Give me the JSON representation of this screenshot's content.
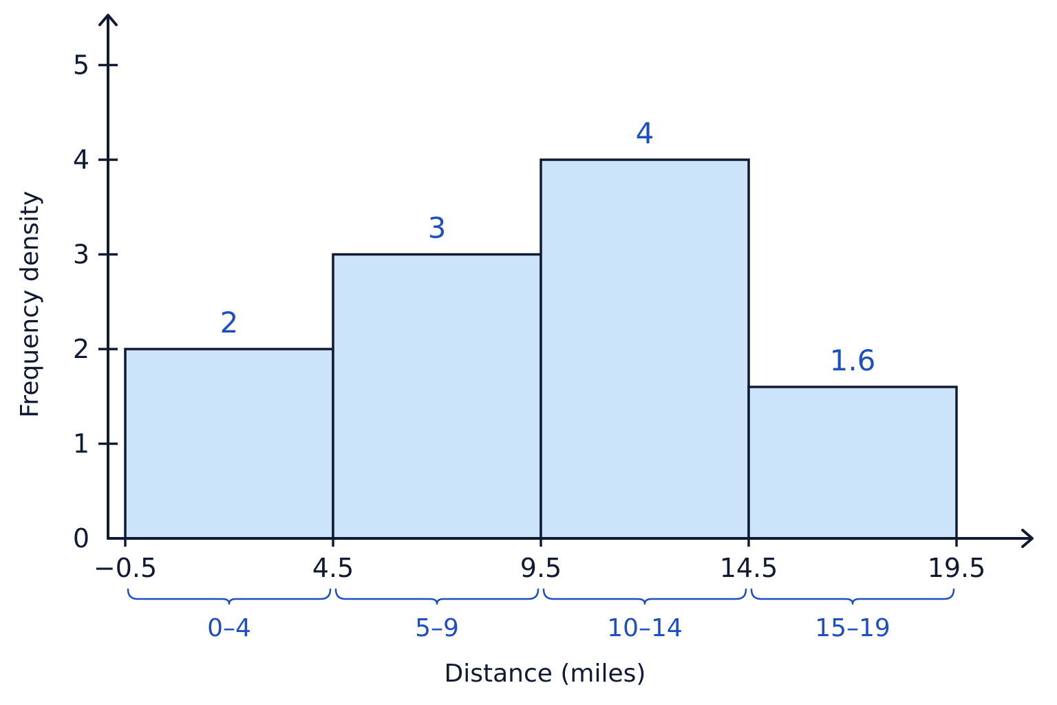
{
  "chart_data": {
    "type": "bar",
    "title": "",
    "xlabel": "Distance (miles)",
    "ylabel": "Frequency density",
    "ylim": [
      0,
      5
    ],
    "xlim": [
      -0.5,
      19.5
    ],
    "y_ticks": [
      "0",
      "1",
      "2",
      "3",
      "4",
      "5"
    ],
    "x_boundaries": [
      {
        "value": -0.5,
        "label": "−0.5"
      },
      {
        "value": 4.5,
        "label": "4.5"
      },
      {
        "value": 9.5,
        "label": "9.5"
      },
      {
        "value": 14.5,
        "label": "14.5"
      },
      {
        "value": 19.5,
        "label": "19.5"
      }
    ],
    "bars": [
      {
        "from": -0.5,
        "to": 4.5,
        "value": 2,
        "value_label": "2",
        "group_label": "0–4"
      },
      {
        "from": 4.5,
        "to": 9.5,
        "value": 3,
        "value_label": "3",
        "group_label": "5–9"
      },
      {
        "from": 9.5,
        "to": 14.5,
        "value": 4,
        "value_label": "4",
        "group_label": "10–14"
      },
      {
        "from": 14.5,
        "to": 19.5,
        "value": 1.6,
        "value_label": "1.6",
        "group_label": "15–19"
      }
    ],
    "grid": false,
    "colors": {
      "bar_fill": "#cce4fa",
      "axis": "#111a33",
      "label": "#1f4fbf"
    }
  }
}
